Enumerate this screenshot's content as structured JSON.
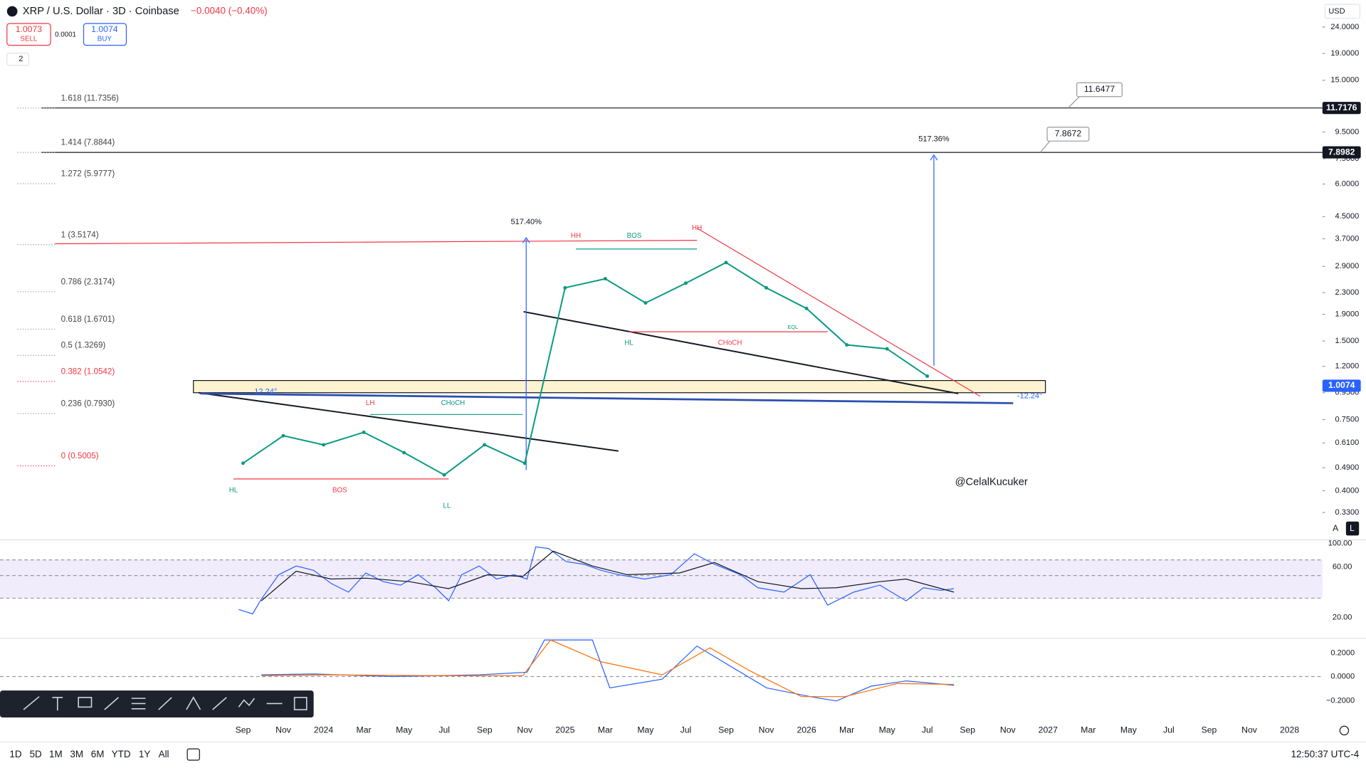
{
  "header": {
    "symbol": "XRP / U.S. Dollar · 3D · Coinbase",
    "change": "−0.0040 (−0.40%)",
    "sell_price": "1.0073",
    "sell": "SELL",
    "spread": "0.0001",
    "buy_price": "1.0074",
    "buy": "BUY",
    "indicators": "2",
    "currency": "USD"
  },
  "markers": {
    "level_1": "11.7176",
    "level_2": "7.8982",
    "current": "1.0074",
    "callout_1": "11.6477",
    "callout_2": "7.8672"
  },
  "fib_levels": [
    "1.618 (11.7356)",
    "1.414 (7.8844)",
    "1.272 (5.9777)",
    "1 (3.5174)",
    "0.786 (2.3174)",
    "0.618 (1.6701)",
    "0.5 (1.3269)",
    "0.382 (1.0542)",
    "0.236 (0.7930)",
    "0 (0.5005)"
  ],
  "annotations": {
    "move_1": "517.40%",
    "move_2": "517.36%",
    "hh_1": "HH",
    "bos_1": "BOS",
    "hh_2": "HH",
    "hl_1": "HL",
    "choch_1": "CHoCH",
    "lh": "LH",
    "choch_2": "CHoCH",
    "hl_2": "HL",
    "bos_2": "BOS",
    "ll": "LL",
    "angle_1": "12.24°",
    "angle_2": "-12.24°",
    "author": "@CelalKucuker",
    "eql": "EQL"
  },
  "chart_data": {
    "type": "line",
    "log_scale": true,
    "color": "#089981",
    "categories": [
      "Sep",
      "Nov",
      "2024",
      "Mar",
      "May",
      "Jul",
      "Sep",
      "Nov",
      "2025",
      "Mar",
      "May",
      "Jul",
      "Sep",
      "Nov",
      "2026",
      "Mar",
      "May",
      "Jul",
      "Sep",
      "Nov",
      "2027",
      "Mar",
      "May",
      "Jul",
      "Sep",
      "Nov",
      "2028"
    ],
    "values": [
      0.51,
      0.65,
      0.6,
      0.67,
      0.56,
      0.46,
      0.6,
      0.51,
      2.4,
      2.6,
      2.1,
      2.5,
      3.0,
      2.4,
      2.0,
      1.45,
      1.4,
      1.1,
      null,
      null,
      null,
      null,
      null,
      null,
      null,
      null,
      null
    ],
    "ylim": [
      0.3,
      30
    ],
    "yticks": [
      {
        "value": 24,
        "label": "24.0000"
      },
      {
        "value": 19,
        "label": "19.0000"
      },
      {
        "value": 15,
        "label": "15.0000"
      },
      {
        "value": 9.5,
        "label": "9.5000"
      },
      {
        "value": 7.5,
        "label": "7.5000"
      },
      {
        "value": 6,
        "label": "6.0000"
      },
      {
        "value": 4.5,
        "label": "4.5000"
      },
      {
        "value": 3.7,
        "label": "3.7000"
      },
      {
        "value": 2.9,
        "label": "2.9000"
      },
      {
        "value": 2.3,
        "label": "2.3000"
      },
      {
        "value": 1.9,
        "label": "1.9000"
      },
      {
        "value": 1.5,
        "label": "1.5000"
      },
      {
        "value": 1.2,
        "label": "1.2000"
      },
      {
        "value": 0.95,
        "label": "0.9500"
      },
      {
        "value": 0.75,
        "label": "0.7500"
      },
      {
        "value": 0.61,
        "label": "0.6100"
      },
      {
        "value": 0.49,
        "label": "0.4900"
      },
      {
        "value": 0.4,
        "label": "0.4000"
      },
      {
        "value": 0.33,
        "label": "0.3300"
      }
    ]
  },
  "rsi_ticks": [
    "100.00",
    "60.00",
    "20.00"
  ],
  "macd_ticks": [
    "0.2000",
    "0.0000",
    "−0.2000"
  ],
  "footer": {
    "ranges": [
      "1D",
      "5D",
      "1M",
      "3M",
      "6M",
      "YTD",
      "1Y",
      "All"
    ],
    "time": "12:50:37 UTC-4",
    "auto": "A",
    "log": "L"
  }
}
